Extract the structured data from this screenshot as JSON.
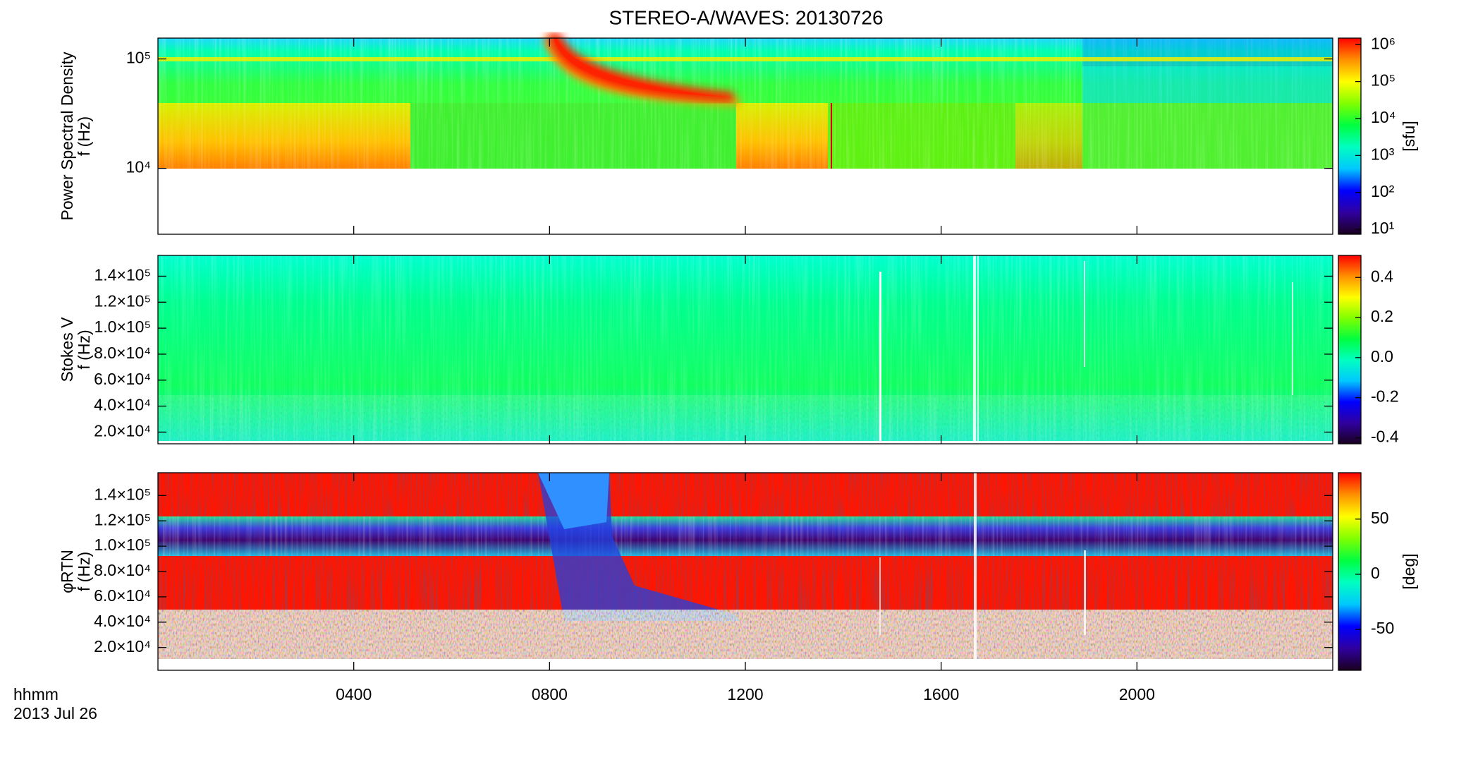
{
  "title": "STEREO-A/WAVES: 20130726",
  "time_caption": [
    "hhmm",
    "2013 Jul 26"
  ],
  "colormap": [
    "#1a0020",
    "#3000a0",
    "#0000ff",
    "#00c8ff",
    "#00ffc0",
    "#00ff40",
    "#80ff00",
    "#ffff00",
    "#ff9000",
    "#ff0000"
  ],
  "chart_data": [
    {
      "type": "heatmap",
      "ylabel": [
        "Power Spectral Density",
        "f (Hz)"
      ],
      "yscale": "log",
      "ylim": [
        2500,
        155000
      ],
      "yticks": [
        {
          "value": 10000,
          "label": "10⁴"
        },
        {
          "value": 100000,
          "label": "10⁵"
        }
      ],
      "colorbar": {
        "label": "[sfu]",
        "scale": "log",
        "lim": [
          7.4,
          1500000
        ],
        "ticks": [
          {
            "value": 10,
            "label": "10¹"
          },
          {
            "value": 100,
            "label": "10²"
          },
          {
            "value": 1000,
            "label": "10³"
          },
          {
            "value": 10000,
            "label": "10⁴"
          },
          {
            "value": 100000,
            "label": "10⁵"
          },
          {
            "value": 1000000,
            "label": "10⁶"
          }
        ]
      }
    },
    {
      "type": "heatmap",
      "ylabel": [
        "Stokes V",
        "f (Hz)"
      ],
      "yscale": "linear",
      "ylim": [
        11000,
        156000
      ],
      "yticks": [
        {
          "value": 20000,
          "label": "2.0×10⁴"
        },
        {
          "value": 40000,
          "label": "4.0×10⁴"
        },
        {
          "value": 60000,
          "label": "6.0×10⁴"
        },
        {
          "value": 80000,
          "label": "8.0×10⁴"
        },
        {
          "value": 100000,
          "label": "1.0×10⁵"
        },
        {
          "value": 120000,
          "label": "1.2×10⁵"
        },
        {
          "value": 140000,
          "label": "1.4×10⁵"
        }
      ],
      "colorbar": {
        "scale": "linear",
        "lim": [
          -0.43,
          0.51
        ],
        "ticks": [
          -0.4,
          -0.2,
          {
            "value": 0,
            "label": "0.0"
          },
          0.2,
          0.4
        ]
      }
    },
    {
      "type": "heatmap",
      "ylabel": [
        "φRTN",
        "f (Hz)"
      ],
      "yscale": "linear",
      "ylim": [
        2000,
        158000
      ],
      "yticks": [
        {
          "value": 20000,
          "label": "2.0×10⁴"
        },
        {
          "value": 40000,
          "label": "4.0×10⁴"
        },
        {
          "value": 60000,
          "label": "6.0×10⁴"
        },
        {
          "value": 80000,
          "label": "8.0×10⁴"
        },
        {
          "value": 100000,
          "label": "1.0×10⁵"
        },
        {
          "value": 120000,
          "label": "1.2×10⁵"
        },
        {
          "value": 140000,
          "label": "1.4×10⁵"
        }
      ],
      "colorbar": {
        "label": "[deg]",
        "scale": "linear",
        "lim": [
          -87,
          92
        ],
        "ticks": [
          -50,
          0,
          50
        ]
      },
      "xlim": [
        0,
        24
      ],
      "xticks": [
        {
          "value": 4,
          "label": "0400"
        },
        {
          "value": 8,
          "label": "0800"
        },
        {
          "value": 12,
          "label": "1200"
        },
        {
          "value": 16,
          "label": "1600"
        },
        {
          "value": 20,
          "label": "2000"
        }
      ]
    }
  ]
}
